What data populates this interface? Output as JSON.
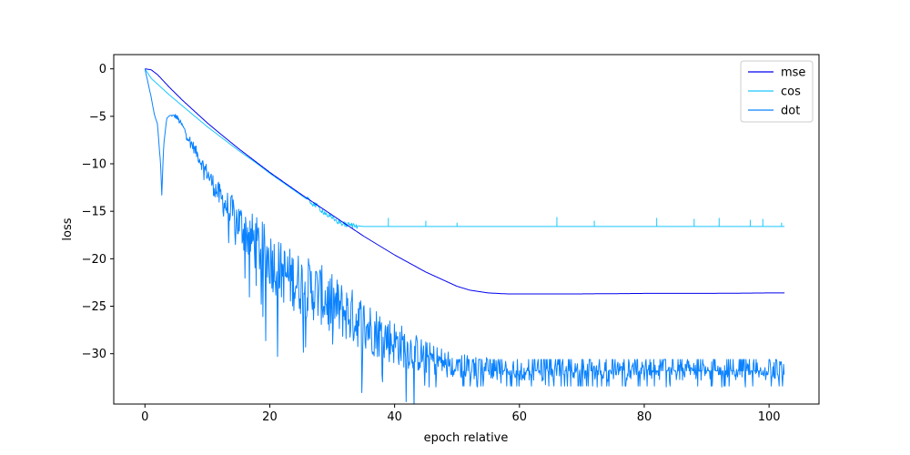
{
  "chart_data": {
    "type": "line",
    "title": "",
    "xlabel": "epoch relative",
    "ylabel": "loss",
    "xlim": [
      -5,
      108
    ],
    "ylim": [
      -35.3,
      1.5
    ],
    "xticks": [
      0,
      20,
      40,
      60,
      80,
      100
    ],
    "yticks": [
      0,
      -5,
      -10,
      -15,
      -20,
      -25,
      -30
    ],
    "legend_position": "top-right",
    "grid": false,
    "series": [
      {
        "name": "mse",
        "color": "#0000ee",
        "x": [
          0,
          1,
          2,
          4,
          6,
          8,
          10,
          12,
          15,
          18,
          20,
          25,
          30,
          35,
          40,
          45,
          50,
          52,
          55,
          58,
          60,
          65,
          70,
          80,
          90,
          100,
          102.5
        ],
        "y": [
          0,
          -0.1,
          -0.6,
          -2.0,
          -3.3,
          -4.5,
          -5.7,
          -6.8,
          -8.4,
          -9.9,
          -10.9,
          -13.2,
          -15.4,
          -17.6,
          -19.6,
          -21.4,
          -22.9,
          -23.3,
          -23.6,
          -23.7,
          -23.7,
          -23.7,
          -23.7,
          -23.65,
          -23.65,
          -23.6,
          -23.6
        ]
      },
      {
        "name": "cos",
        "color": "#1ac6ff",
        "x": [
          0,
          1,
          2,
          4,
          6,
          8,
          10,
          12,
          15,
          18,
          20,
          25,
          28,
          30,
          32,
          35,
          40,
          50,
          60,
          70,
          80,
          90,
          100,
          102.5
        ],
        "y": [
          0,
          -1.0,
          -1.6,
          -2.8,
          -3.9,
          -5.0,
          -6.1,
          -7.1,
          -8.6,
          -10.0,
          -11.0,
          -13.3,
          -14.7,
          -15.8,
          -16.4,
          -16.6,
          -16.6,
          -16.6,
          -16.6,
          -16.6,
          -16.6,
          -16.6,
          -16.6,
          -16.6
        ],
        "spikes": [
          {
            "x": 39,
            "y": -15.7
          },
          {
            "x": 45,
            "y": -16.0
          },
          {
            "x": 50,
            "y": -16.2
          },
          {
            "x": 66,
            "y": -15.6
          },
          {
            "x": 72,
            "y": -16.0
          },
          {
            "x": 82,
            "y": -15.7
          },
          {
            "x": 88,
            "y": -15.8
          },
          {
            "x": 92,
            "y": -15.7
          },
          {
            "x": 97,
            "y": -15.9
          },
          {
            "x": 99,
            "y": -15.8
          },
          {
            "x": 102,
            "y": -16.2
          }
        ]
      },
      {
        "name": "dot",
        "color": "#0a82ff",
        "x": [
          0,
          0.5,
          1,
          1.5,
          2,
          2.5,
          2.7,
          3,
          3.5,
          4,
          5,
          6,
          7,
          8,
          9,
          10,
          12,
          14,
          16,
          18,
          20,
          22,
          25,
          28,
          30,
          33,
          36,
          40,
          45,
          50,
          60,
          70,
          80,
          90,
          100,
          102.5
        ],
        "y": [
          0,
          -1.5,
          -3.0,
          -4.8,
          -5.8,
          -10.0,
          -13.3,
          -8.0,
          -5.2,
          -4.9,
          -5.0,
          -6.0,
          -7.3,
          -8.5,
          -9.8,
          -11.0,
          -13.5,
          -15.3,
          -17.0,
          -18.6,
          -20.0,
          -21.5,
          -22.7,
          -23.7,
          -24.8,
          -26.0,
          -27.3,
          -28.8,
          -30.4,
          -31.3,
          -31.8,
          -31.8,
          -31.8,
          -31.8,
          -31.8,
          -31.8
        ],
        "noise_amp": [
          0,
          0,
          0,
          0,
          0,
          0,
          0,
          0,
          0,
          0,
          0.3,
          0.3,
          0.5,
          0.6,
          0.7,
          0.9,
          1.4,
          2.0,
          2.6,
          3.0,
          3.2,
          3.2,
          3.3,
          3.2,
          3.2,
          3.0,
          2.8,
          2.4,
          1.8,
          1.4,
          1.0,
          1.0,
          1.0,
          1.0,
          1.0,
          1.0
        ]
      }
    ]
  }
}
